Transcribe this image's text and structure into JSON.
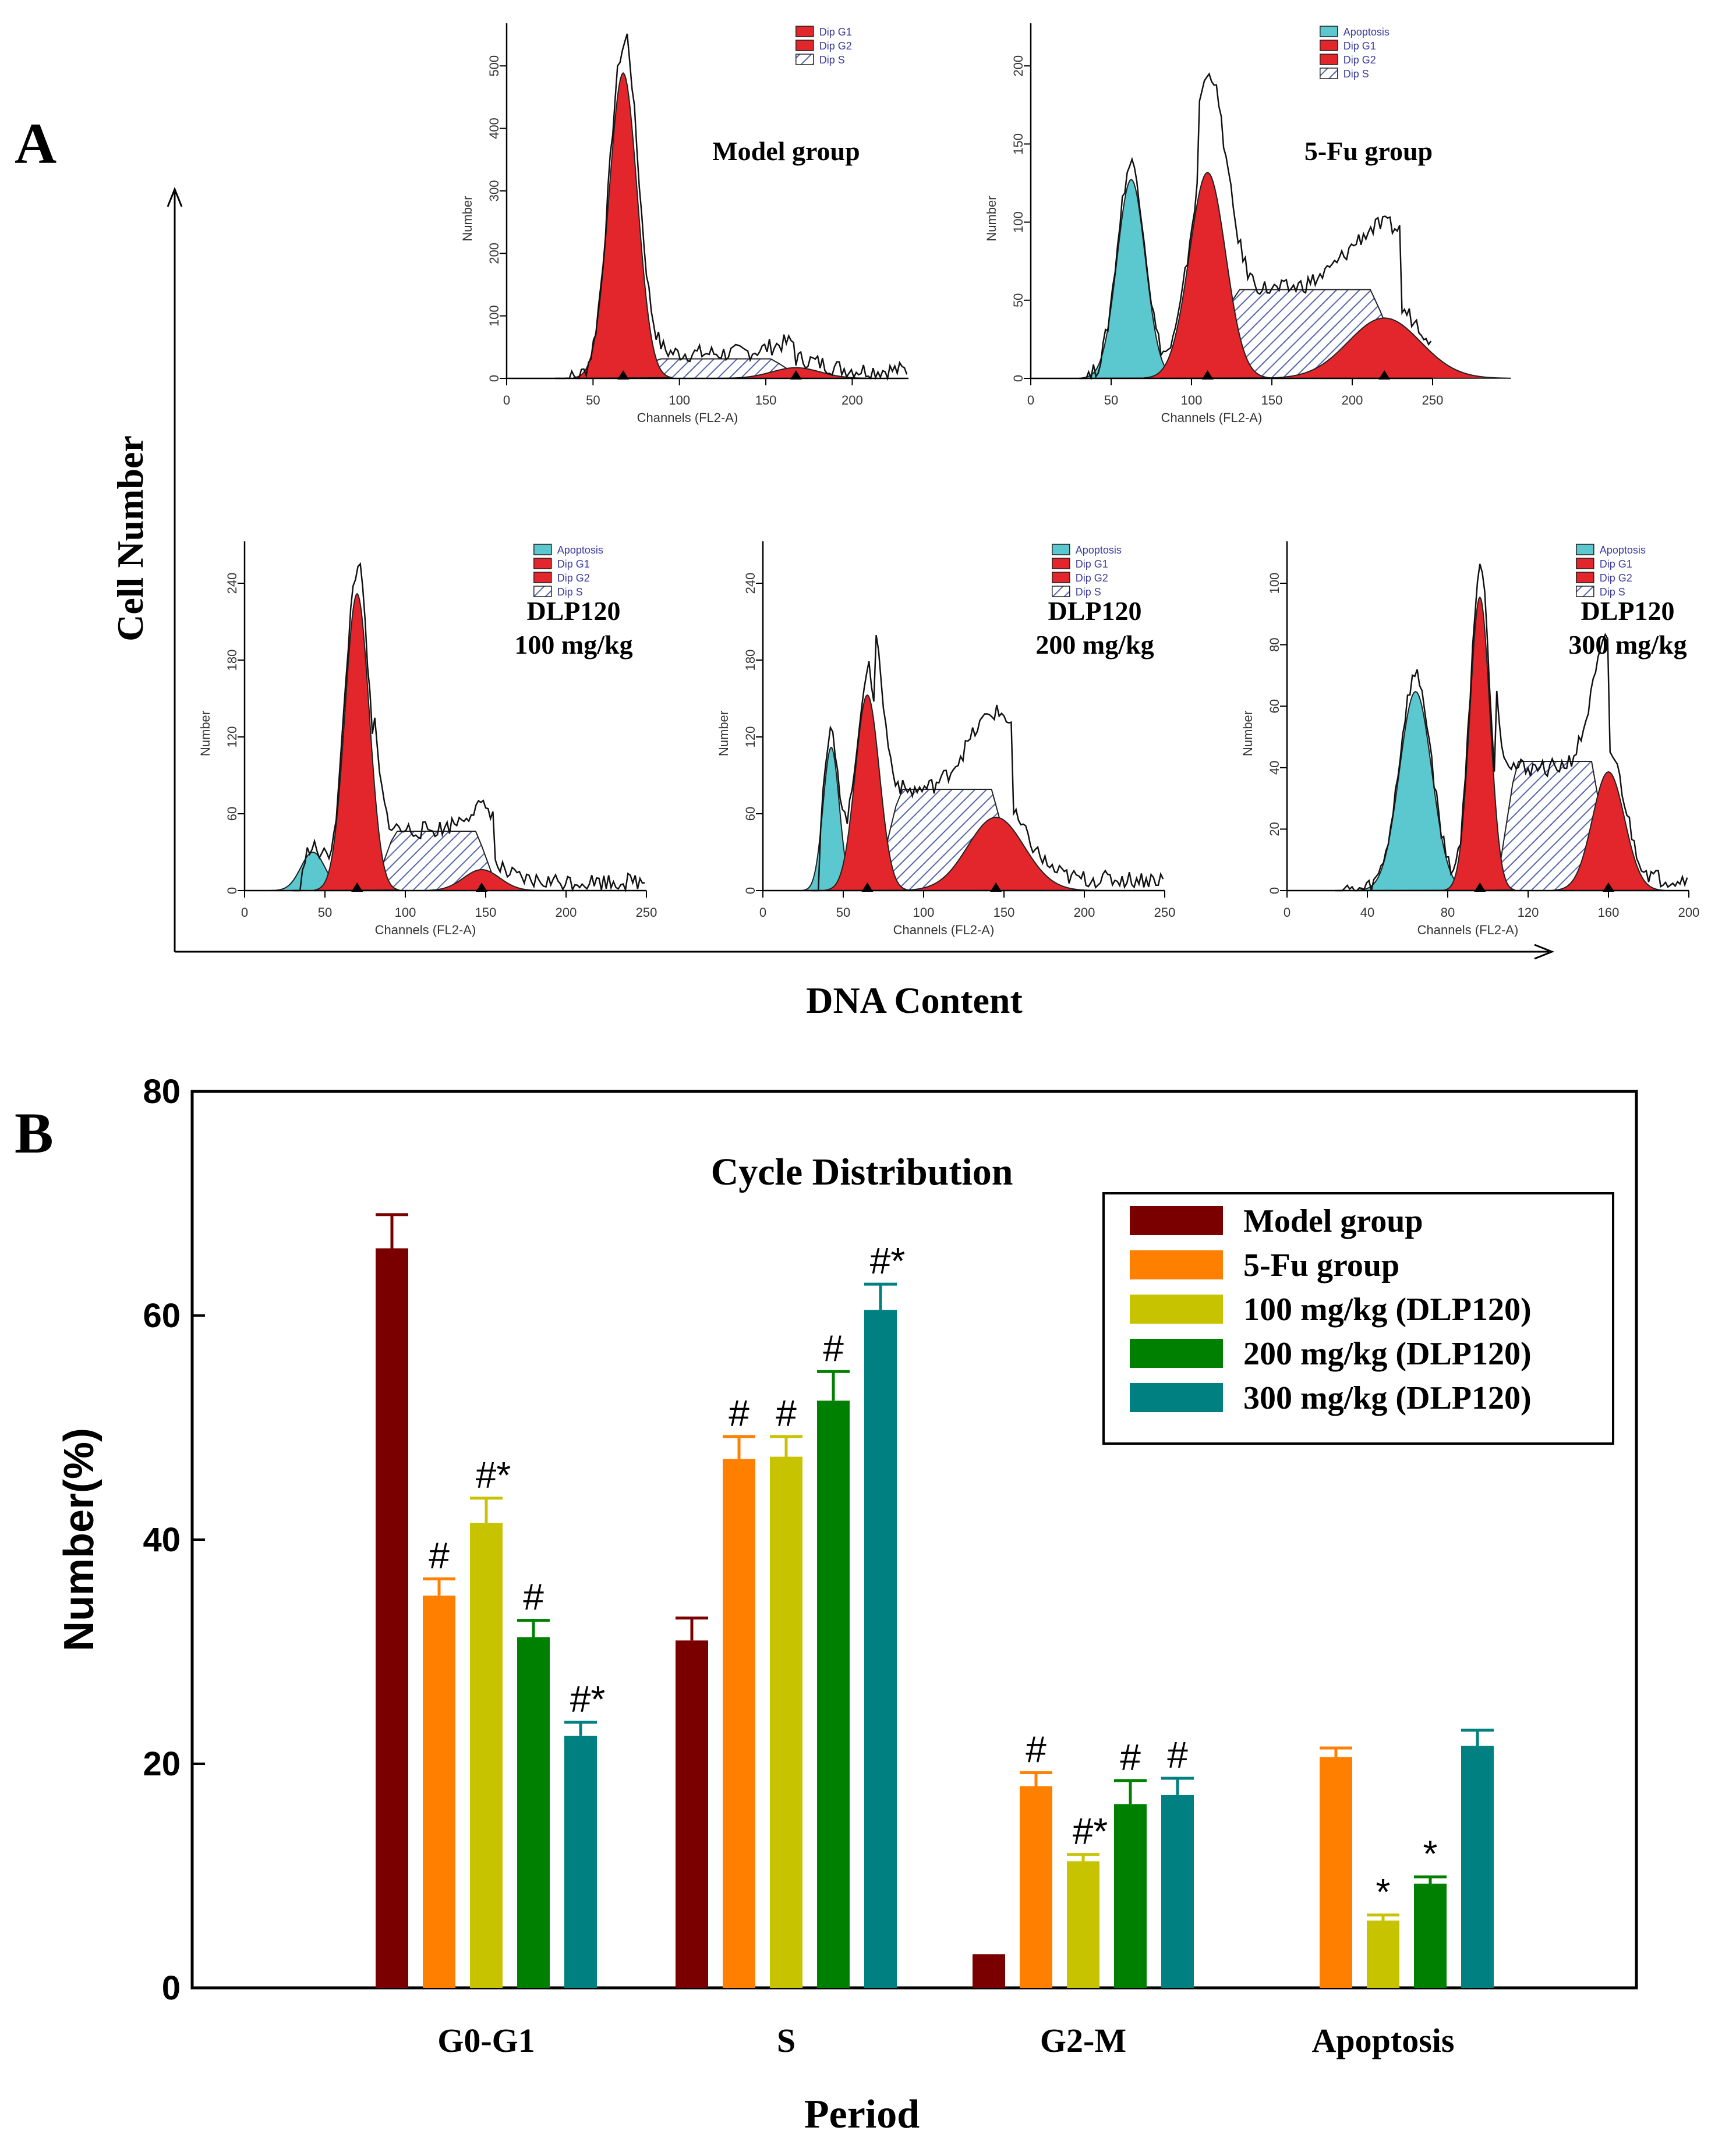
{
  "panel_a": {
    "letter": "A",
    "y_axis_label": "Cell Number",
    "x_axis_label": "DNA Content",
    "histogram_axis_x_label": "Channels (FL2-A)",
    "histogram_axis_y_label": "Number",
    "legend_items": [
      "Apoptosis",
      "Dip G1",
      "Dip G2",
      "Dip S"
    ],
    "colors": {
      "apoptosis": "#5bc8d0",
      "g1": "#e3262b",
      "g2": "#e3262b",
      "s_hatch": "#5566aa"
    },
    "histograms": [
      {
        "title_lines": [
          "Model group"
        ],
        "legend": [
          "Dip G1",
          "Dip G2",
          "Dip S"
        ],
        "x_ticks": [
          "0",
          "50",
          "100",
          "150",
          "200"
        ],
        "y_ticks": [
          "0",
          "100",
          "200",
          "300",
          "400",
          "500"
        ]
      },
      {
        "title_lines": [
          "5-Fu group"
        ],
        "legend": [
          "Apoptosis",
          "Dip G1",
          "Dip G2",
          "Dip S"
        ],
        "x_ticks": [
          "0",
          "50",
          "100",
          "150",
          "200",
          "250"
        ],
        "y_ticks": [
          "0",
          "50",
          "100",
          "150",
          "200"
        ]
      },
      {
        "title_lines": [
          "DLP120",
          "100 mg/kg"
        ],
        "legend": [
          "Apoptosis",
          "Dip G1",
          "Dip G2",
          "Dip S"
        ],
        "x_ticks": [
          "0",
          "50",
          "100",
          "150",
          "200",
          "250"
        ],
        "y_ticks": [
          "0",
          "60",
          "120",
          "180",
          "240"
        ]
      },
      {
        "title_lines": [
          "DLP120",
          "200 mg/kg"
        ],
        "legend": [
          "Apoptosis",
          "Dip G1",
          "Dip G2",
          "Dip S"
        ],
        "x_ticks": [
          "0",
          "50",
          "100",
          "150",
          "200",
          "250"
        ],
        "y_ticks": [
          "0",
          "60",
          "120",
          "180",
          "240"
        ]
      },
      {
        "title_lines": [
          "DLP120",
          "300 mg/kg"
        ],
        "legend": [
          "Apoptosis",
          "Dip G1",
          "Dip G2",
          "Dip S"
        ],
        "x_ticks": [
          "0",
          "40",
          "80",
          "120",
          "160",
          "200"
        ],
        "y_ticks": [
          "0",
          "20",
          "40",
          "60",
          "80",
          "100"
        ]
      }
    ]
  },
  "chart_data": {
    "panel_letter": "B",
    "type": "bar",
    "title": "Cycle Distribution",
    "xlabel": "Period",
    "ylabel": "Number(%)",
    "ylim": [
      0,
      80
    ],
    "yticks": [
      0,
      20,
      40,
      60,
      80
    ],
    "categories": [
      "G0-G1",
      "S",
      "G2-M",
      "Apoptosis"
    ],
    "legend_position": "top-right",
    "series": [
      {
        "name": "Model group",
        "color": "#7a0000",
        "values": [
          66,
          31,
          3,
          0
        ],
        "errors": [
          3,
          2,
          0,
          0
        ],
        "marks": [
          "",
          "",
          "",
          ""
        ]
      },
      {
        "name": "5-Fu group",
        "color": "#ff7f00",
        "values": [
          35,
          47.2,
          18,
          20.6
        ],
        "errors": [
          1.5,
          2,
          1.2,
          0.8
        ],
        "marks": [
          "#",
          "#",
          "#",
          ""
        ]
      },
      {
        "name": "100 mg/kg (DLP120)",
        "color": "#c8c300",
        "values": [
          41.5,
          47.4,
          11.3,
          6
        ],
        "errors": [
          2.2,
          1.8,
          0.6,
          0.5
        ],
        "marks": [
          "#*",
          "#",
          "#*",
          "*"
        ]
      },
      {
        "name": "200 mg/kg (DLP120)",
        "color": "#008000",
        "values": [
          31.3,
          52.4,
          16.4,
          9.3
        ],
        "errors": [
          1.5,
          2.6,
          2.1,
          0.6
        ],
        "marks": [
          "#",
          "#",
          "#",
          "*"
        ]
      },
      {
        "name": "300 mg/kg (DLP120)",
        "color": "#008080",
        "values": [
          22.5,
          60.5,
          17.2,
          21.6
        ],
        "errors": [
          1.2,
          2.3,
          1.5,
          1.4
        ],
        "marks": [
          "#*",
          "#*",
          "#",
          ""
        ]
      }
    ]
  }
}
